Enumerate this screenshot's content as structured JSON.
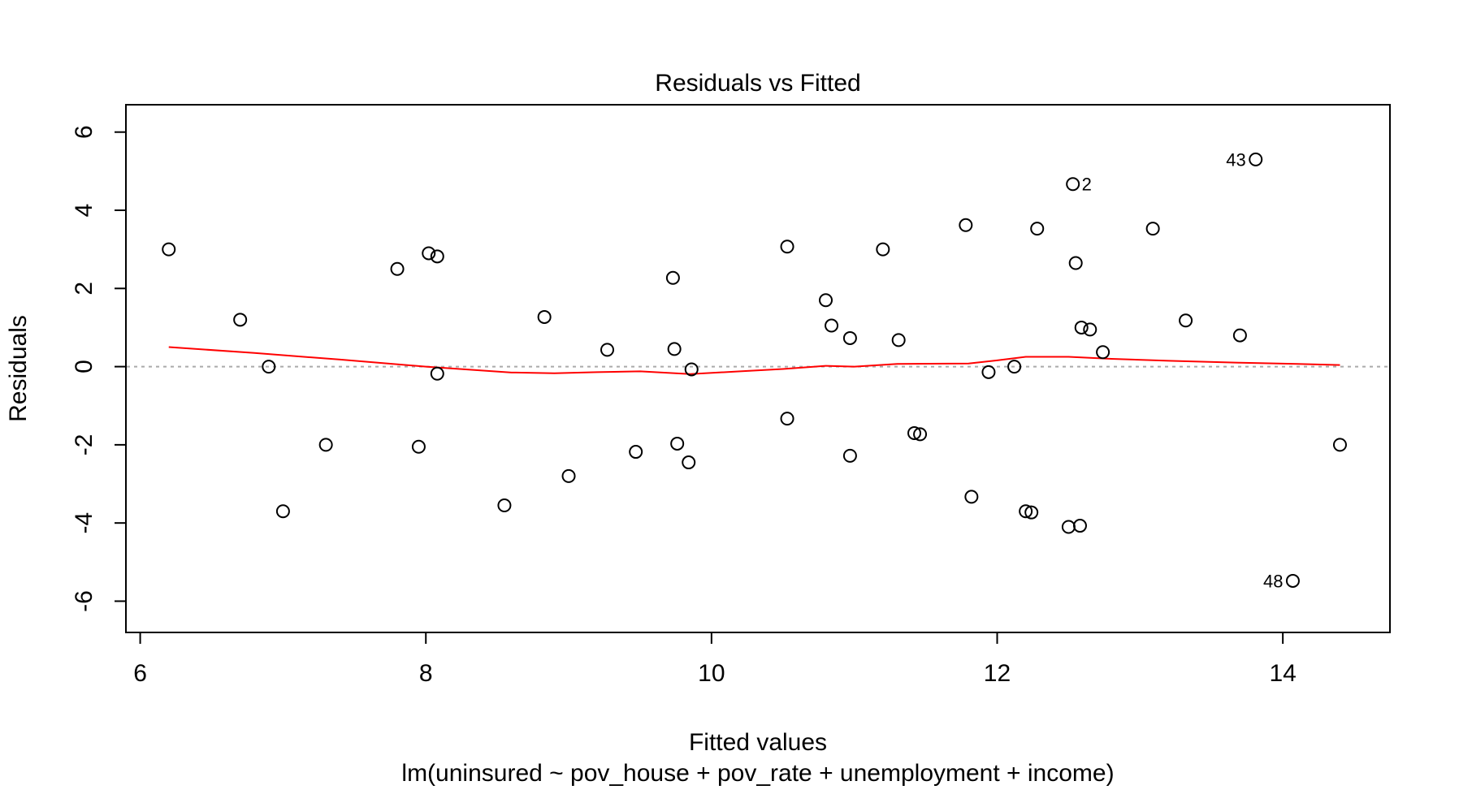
{
  "chart_data": {
    "type": "scatter",
    "title": "Residuals vs Fitted",
    "xlabel": "Fitted values",
    "ylabel": "Residuals",
    "subtitle": "lm(uninsured ~ pov_house + pov_rate + unemployment + income)",
    "xlim": [
      5.9,
      14.75
    ],
    "ylim": [
      -6.8,
      6.7
    ],
    "xticks": [
      6,
      8,
      10,
      12,
      14
    ],
    "yticks": [
      -6,
      -4,
      -2,
      0,
      2,
      4,
      6
    ],
    "xtick_labels": [
      "6",
      "8",
      "10",
      "12",
      "14"
    ],
    "ytick_labels": [
      "-6",
      "-4",
      "-2",
      "0",
      "2",
      "4",
      "6"
    ],
    "grid": false,
    "reference_line_y": 0,
    "points": [
      {
        "x": 6.2,
        "y": 3.0
      },
      {
        "x": 6.7,
        "y": 1.2
      },
      {
        "x": 6.9,
        "y": 0.0
      },
      {
        "x": 7.0,
        "y": -3.7
      },
      {
        "x": 7.3,
        "y": -2.0
      },
      {
        "x": 7.8,
        "y": 2.5
      },
      {
        "x": 7.95,
        "y": -2.05
      },
      {
        "x": 8.02,
        "y": 2.9
      },
      {
        "x": 8.08,
        "y": 2.82
      },
      {
        "x": 8.08,
        "y": -0.18
      },
      {
        "x": 8.55,
        "y": -3.55
      },
      {
        "x": 8.83,
        "y": 1.27
      },
      {
        "x": 9.0,
        "y": -2.8
      },
      {
        "x": 9.27,
        "y": 0.43
      },
      {
        "x": 9.47,
        "y": -2.18
      },
      {
        "x": 9.73,
        "y": 2.27
      },
      {
        "x": 9.74,
        "y": 0.45
      },
      {
        "x": 9.76,
        "y": -1.97
      },
      {
        "x": 9.84,
        "y": -2.45
      },
      {
        "x": 9.86,
        "y": -0.07
      },
      {
        "x": 10.53,
        "y": 3.07
      },
      {
        "x": 10.53,
        "y": -1.33
      },
      {
        "x": 10.8,
        "y": 1.7
      },
      {
        "x": 10.84,
        "y": 1.05
      },
      {
        "x": 10.97,
        "y": 0.73
      },
      {
        "x": 10.97,
        "y": -2.28
      },
      {
        "x": 11.2,
        "y": 3.0
      },
      {
        "x": 11.31,
        "y": 0.68
      },
      {
        "x": 11.42,
        "y": -1.7
      },
      {
        "x": 11.46,
        "y": -1.73
      },
      {
        "x": 11.78,
        "y": 3.62
      },
      {
        "x": 11.82,
        "y": -3.33
      },
      {
        "x": 11.94,
        "y": -0.14
      },
      {
        "x": 12.12,
        "y": 0.0
      },
      {
        "x": 12.2,
        "y": -3.7
      },
      {
        "x": 12.24,
        "y": -3.73
      },
      {
        "x": 12.28,
        "y": 3.53
      },
      {
        "x": 12.5,
        "y": -4.1
      },
      {
        "x": 12.53,
        "y": 4.67,
        "label": "2"
      },
      {
        "x": 12.55,
        "y": 2.65
      },
      {
        "x": 12.58,
        "y": -4.07
      },
      {
        "x": 12.59,
        "y": 1.0
      },
      {
        "x": 12.65,
        "y": 0.95
      },
      {
        "x": 12.74,
        "y": 0.37
      },
      {
        "x": 13.09,
        "y": 3.53
      },
      {
        "x": 13.32,
        "y": 1.18
      },
      {
        "x": 13.7,
        "y": 0.8
      },
      {
        "x": 13.81,
        "y": 5.3,
        "label": "43"
      },
      {
        "x": 14.07,
        "y": -5.48,
        "label": "48"
      },
      {
        "x": 14.4,
        "y": -2.0
      }
    ],
    "smoother": {
      "x": [
        6.2,
        6.8,
        7.4,
        8.0,
        8.6,
        8.9,
        9.2,
        9.5,
        9.85,
        10.2,
        10.5,
        10.8,
        11.0,
        11.3,
        11.8,
        12.0,
        12.2,
        12.5,
        12.8,
        13.2,
        13.7,
        14.1,
        14.4
      ],
      "y": [
        0.5,
        0.35,
        0.18,
        0.0,
        -0.15,
        -0.17,
        -0.14,
        -0.12,
        -0.19,
        -0.12,
        -0.06,
        0.02,
        0.0,
        0.07,
        0.08,
        0.16,
        0.25,
        0.25,
        0.2,
        0.15,
        0.1,
        0.07,
        0.04
      ]
    },
    "colors": {
      "points": "#000000",
      "smoother": "#ff0000",
      "reference_line": "#aaaaaa",
      "frame": "#000000"
    }
  }
}
